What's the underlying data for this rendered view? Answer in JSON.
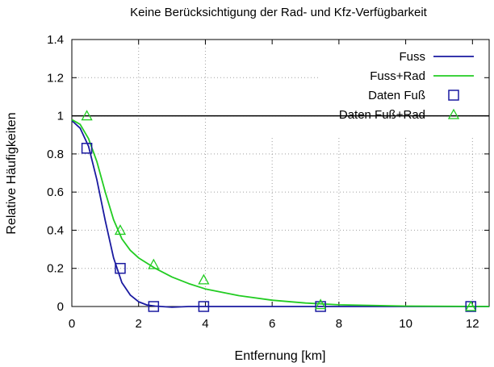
{
  "chart_data": {
    "type": "line",
    "title": "Keine Berücksichtigung der Rad- und Kfz-Verfügbarkeit",
    "xlabel": "Entfernung [km]",
    "ylabel": "Relative Häufigkeiten",
    "xlim": [
      0,
      12.5
    ],
    "ylim": [
      0,
      1.4
    ],
    "xticks": [
      "0",
      "2",
      "4",
      "6",
      "8",
      "10",
      "12"
    ],
    "yticks": [
      "0",
      "0.2",
      "0.4",
      "0.6",
      "0.8",
      "1",
      "1.2",
      "1.4"
    ],
    "grid": true,
    "legend_position": "top-right",
    "reference_line": {
      "y": 1
    },
    "series": [
      {
        "name": "Fuss",
        "kind": "line",
        "color": "#1a1aa0",
        "x": [
          0,
          0.25,
          0.5,
          0.75,
          1.0,
          1.25,
          1.5,
          1.75,
          2.0,
          2.25,
          2.5,
          3.0,
          3.5,
          4.0,
          6.0,
          8.0,
          10.0,
          12.5
        ],
        "y": [
          0.975,
          0.935,
          0.84,
          0.665,
          0.45,
          0.255,
          0.125,
          0.06,
          0.025,
          0.008,
          0.002,
          -0.004,
          0.0,
          0.0,
          0.0,
          0.0,
          0.0,
          0.0
        ]
      },
      {
        "name": "Fuss+Rad",
        "kind": "line",
        "color": "#22cc22",
        "x": [
          0,
          0.25,
          0.5,
          0.75,
          1.0,
          1.25,
          1.5,
          1.75,
          2.0,
          2.5,
          3.0,
          3.5,
          4.0,
          5.0,
          6.0,
          7.0,
          8.0,
          10.0,
          12.5
        ],
        "y": [
          0.98,
          0.955,
          0.88,
          0.76,
          0.6,
          0.455,
          0.355,
          0.295,
          0.255,
          0.2,
          0.155,
          0.12,
          0.092,
          0.057,
          0.033,
          0.018,
          0.009,
          0.002,
          0.0
        ]
      },
      {
        "name": "Daten Fuß",
        "kind": "points",
        "marker": "square",
        "color": "#1a1aa0",
        "x": [
          0.45,
          1.45,
          2.45,
          3.95,
          7.45,
          11.95
        ],
        "y": [
          0.83,
          0.2,
          0.0,
          0.0,
          0.0,
          0.0
        ]
      },
      {
        "name": "Daten Fuß+Rad",
        "kind": "points",
        "marker": "triangle",
        "color": "#22cc22",
        "x": [
          0.45,
          1.45,
          2.45,
          3.95,
          7.45,
          11.95
        ],
        "y": [
          1.0,
          0.4,
          0.22,
          0.14,
          0.01,
          0.0
        ]
      }
    ]
  }
}
